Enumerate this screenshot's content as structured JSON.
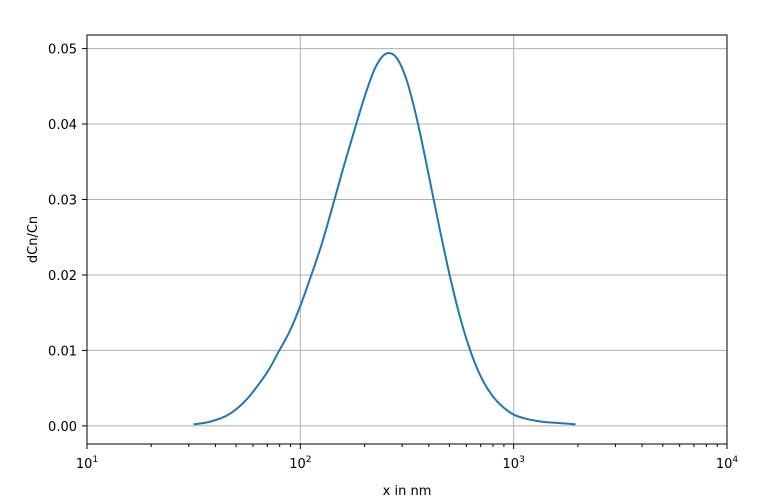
{
  "chart_data": {
    "type": "line",
    "title": "",
    "xlabel": "x in nm",
    "ylabel": "dCn/Cn",
    "x_scale": "log",
    "xlim": [
      10,
      10000
    ],
    "ylim": [
      -0.0024,
      0.0518
    ],
    "grid": true,
    "x_ticks": [
      {
        "value": 10,
        "base": "10",
        "exp": "1"
      },
      {
        "value": 100,
        "base": "10",
        "exp": "2"
      },
      {
        "value": 1000,
        "base": "10",
        "exp": "3"
      },
      {
        "value": 10000,
        "base": "10",
        "exp": "4"
      }
    ],
    "y_ticks": [
      {
        "value": 0.0,
        "label": "0.00"
      },
      {
        "value": 0.01,
        "label": "0.01"
      },
      {
        "value": 0.02,
        "label": "0.02"
      },
      {
        "value": 0.03,
        "label": "0.03"
      },
      {
        "value": 0.04,
        "label": "0.04"
      },
      {
        "value": 0.05,
        "label": "0.05"
      }
    ],
    "series": [
      {
        "color": "#1f77b4",
        "x": [
          31.6,
          37,
          44,
          50,
          56,
          63,
          71,
          79,
          89,
          100,
          112,
          126,
          141,
          158,
          178,
          200,
          224,
          251,
          282,
          316,
          355,
          398,
          447,
          501,
          562,
          631,
          708,
          794,
          891,
          1000,
          1122,
          1259,
          1413,
          1585,
          1778,
          1950
        ],
        "y": [
          0.0002,
          0.0005,
          0.0012,
          0.0022,
          0.0035,
          0.0053,
          0.0074,
          0.0098,
          0.0125,
          0.0159,
          0.0198,
          0.0241,
          0.0289,
          0.0339,
          0.0389,
          0.0436,
          0.0474,
          0.0493,
          0.0488,
          0.0457,
          0.0402,
          0.0335,
          0.0265,
          0.02,
          0.0143,
          0.0097,
          0.0063,
          0.004,
          0.0025,
          0.0015,
          0.001,
          0.0007,
          0.0005,
          0.0004,
          0.0003,
          0.0002
        ]
      }
    ]
  }
}
